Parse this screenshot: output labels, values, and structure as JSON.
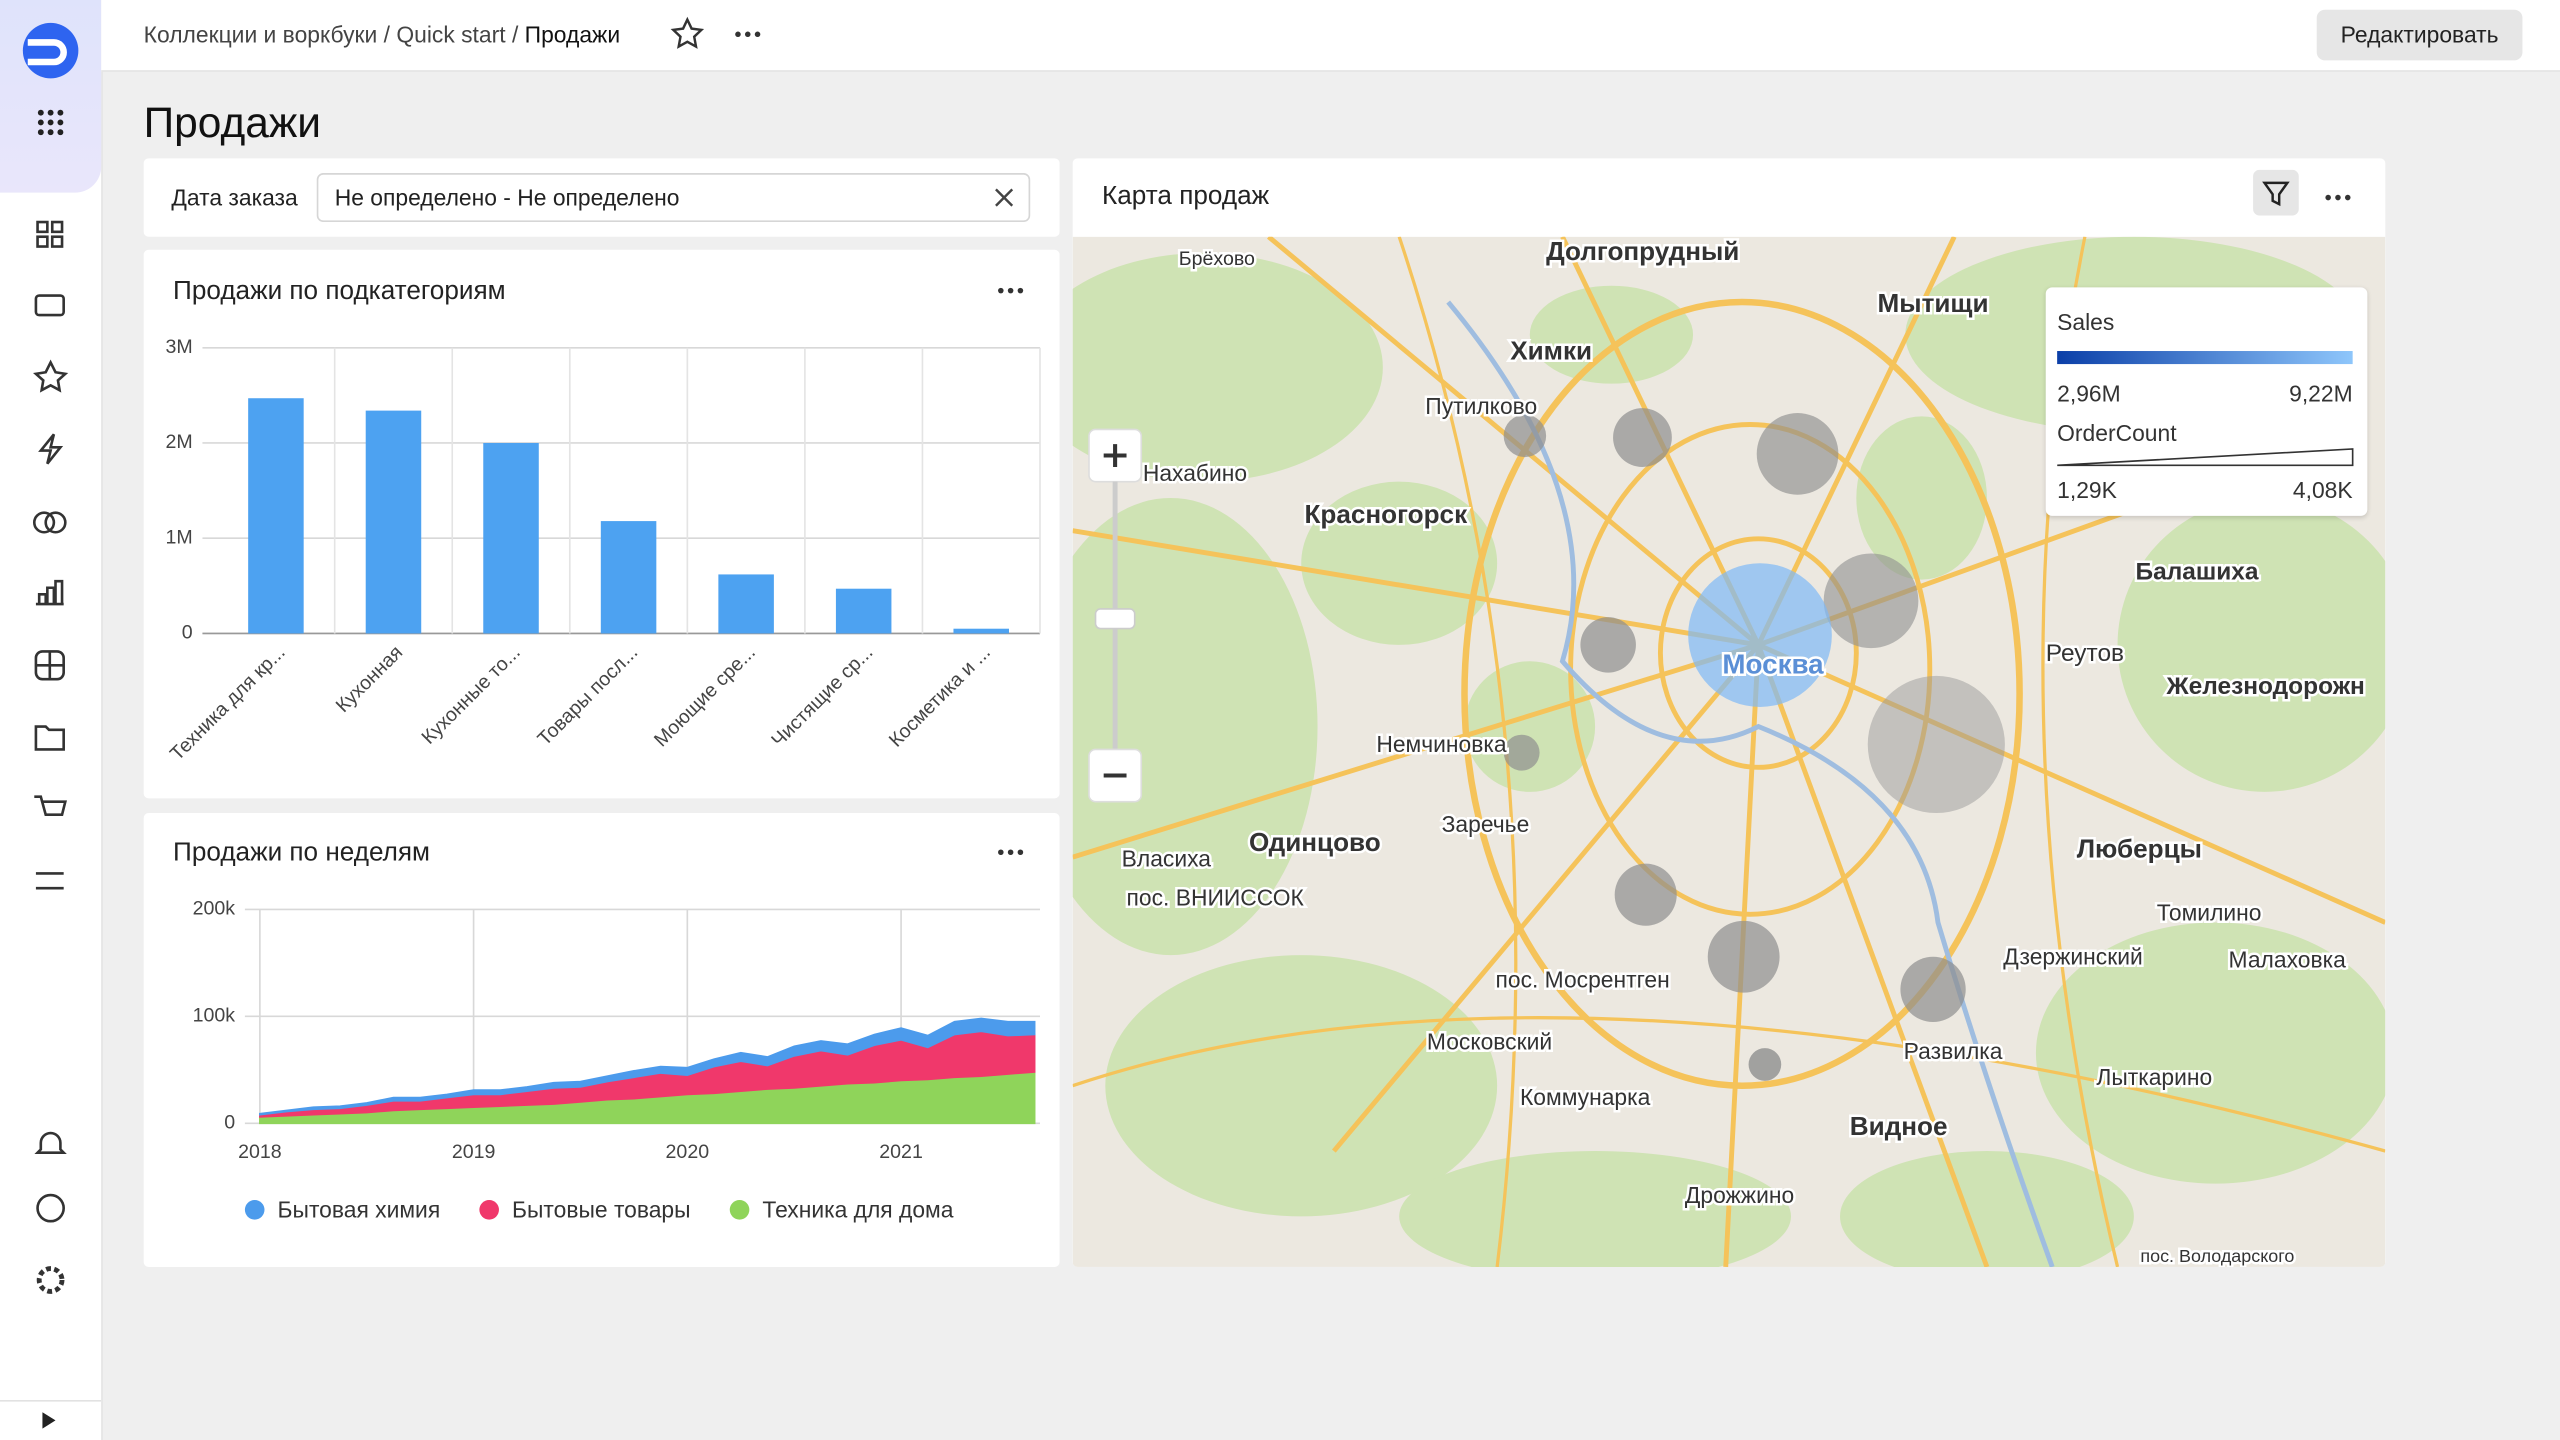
{
  "header": {
    "breadcrumbs": [
      "Коллекции и воркбуки",
      "Quick start",
      "Продажи"
    ],
    "separator": "/",
    "edit_button": "Редактировать"
  },
  "page_title": "Продажи",
  "filter": {
    "label": "Дата заказа",
    "value": "Не определено - Не определено"
  },
  "chart_data": [
    {
      "type": "bar",
      "title": "Продажи по подкатегориям",
      "categories": [
        "Техника для кр...",
        "Кухонная",
        "Кухонные то...",
        "Товары посл...",
        "Моющие сре...",
        "Чистящие ср...",
        "Косметика и ..."
      ],
      "values": [
        2470000,
        2340000,
        2000000,
        1180000,
        620000,
        470000,
        50000
      ],
      "color": "#4da2f1",
      "ylim": [
        0,
        3000000
      ],
      "yticks": [
        0,
        {
          "value": 1000000,
          "label": "1M"
        },
        {
          "value": 2000000,
          "label": "2M"
        },
        {
          "value": 3000000,
          "label": "3M"
        }
      ],
      "grid": true
    },
    {
      "type": "stacked-area",
      "title": "Продажи по неделям",
      "x": [
        2018,
        2018.125,
        2018.25,
        2018.375,
        2018.5,
        2018.625,
        2018.75,
        2018.875,
        2019,
        2019.125,
        2019.25,
        2019.375,
        2019.5,
        2019.625,
        2019.75,
        2019.875,
        2020,
        2020.125,
        2020.25,
        2020.375,
        2020.5,
        2020.625,
        2020.75,
        2020.875,
        2021,
        2021.125,
        2021.25,
        2021.375,
        2021.5,
        2021.625
      ],
      "xlim": [
        2017.93,
        2021.65
      ],
      "xticks": [
        2018,
        2019,
        2020,
        2021
      ],
      "ylim": [
        0,
        200000
      ],
      "yticks": [
        0,
        {
          "value": 100000,
          "label": "100k"
        },
        {
          "value": 200000,
          "label": "200k"
        }
      ],
      "grid": true,
      "series": [
        {
          "name": "Бытовая химия",
          "color": "#4c9bec",
          "values": [
            1000,
            1000,
            2000,
            2000,
            2000,
            3000,
            3000,
            3000,
            4000,
            4000,
            4000,
            5000,
            5000,
            5000,
            6000,
            6000,
            7000,
            7000,
            8000,
            8000,
            9000,
            9000,
            10000,
            10000,
            11000,
            11000,
            12000,
            12000,
            13000,
            12000
          ]
        },
        {
          "name": "Бытовые товары",
          "color": "#f0386b",
          "values": [
            2000,
            4000,
            5000,
            5000,
            7000,
            9000,
            8000,
            10000,
            12000,
            11000,
            13000,
            15000,
            14000,
            17000,
            20000,
            22000,
            18000,
            25000,
            28000,
            22000,
            30000,
            33000,
            27000,
            35000,
            38000,
            30000,
            40000,
            42000,
            36000,
            35000
          ]
        },
        {
          "name": "Техника для дома",
          "color": "#8fd45a",
          "values": [
            6000,
            7000,
            8000,
            9000,
            10000,
            12000,
            13000,
            14000,
            15000,
            16000,
            17000,
            18000,
            20000,
            22000,
            23000,
            25000,
            27000,
            28000,
            30000,
            32000,
            33000,
            35000,
            37000,
            38000,
            40000,
            41000,
            43000,
            44000,
            46000,
            48000
          ]
        }
      ]
    }
  ],
  "map": {
    "title": "Карта продаж",
    "legend": {
      "color_title": "Sales",
      "color_min": "2,96M",
      "color_max": "9,22M",
      "size_title": "OrderCount",
      "size_min": "1,29K",
      "size_max": "4,08K"
    },
    "places": [
      "Брёхово",
      "Долгопрудный",
      "Мытищи",
      "Химки",
      "Путилково",
      "Нахабино",
      "Красногорск",
      "Балашиха",
      "Реутов",
      "Железнодорожн",
      "Москва",
      "Немчиновка",
      "Заречье",
      "Одинцово",
      "Власиха",
      "пос. ВНИИССОК",
      "Люберцы",
      "Томилино",
      "Дзержинский",
      "Малаховка",
      "пос. Мосрентген",
      "Московский",
      "Развилка",
      "Лыткарино",
      "Коммунарка",
      "Видное",
      "Дрожжино",
      "пос. Володарского"
    ]
  }
}
